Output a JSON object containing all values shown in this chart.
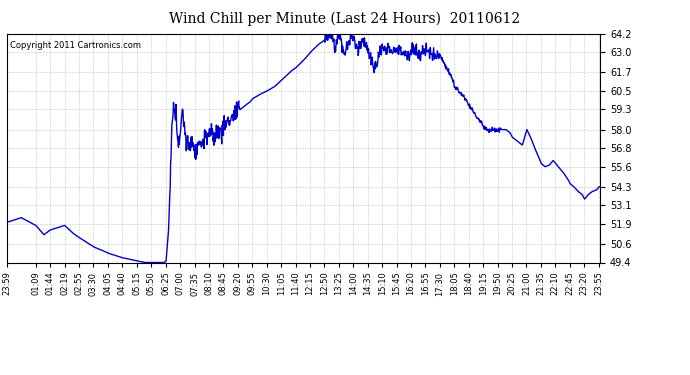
{
  "title": "Wind Chill per Minute (Last 24 Hours)  20110612",
  "copyright_text": "Copyright 2011 Cartronics.com",
  "line_color": "#0000cc",
  "background_color": "#ffffff",
  "plot_bg_color": "#ffffff",
  "grid_color": "#aaaaaa",
  "ylim": [
    49.4,
    64.2
  ],
  "yticks": [
    49.4,
    50.6,
    51.9,
    53.1,
    54.3,
    55.6,
    56.8,
    58.0,
    59.3,
    60.5,
    61.7,
    63.0,
    64.2
  ],
  "xtick_labels": [
    "23:59",
    "01:09",
    "01:44",
    "02:19",
    "02:55",
    "03:30",
    "04:05",
    "04:40",
    "05:15",
    "05:50",
    "06:25",
    "07:00",
    "07:35",
    "08:10",
    "08:45",
    "09:20",
    "09:55",
    "10:30",
    "11:05",
    "11:40",
    "12:15",
    "12:50",
    "13:25",
    "14:00",
    "14:35",
    "15:10",
    "15:45",
    "16:20",
    "16:55",
    "17:30",
    "18:05",
    "18:40",
    "19:15",
    "19:50",
    "20:25",
    "21:00",
    "21:35",
    "22:10",
    "22:45",
    "23:20",
    "23:55"
  ],
  "line_width": 1.0,
  "figsize": [
    6.9,
    3.75
  ],
  "dpi": 100
}
